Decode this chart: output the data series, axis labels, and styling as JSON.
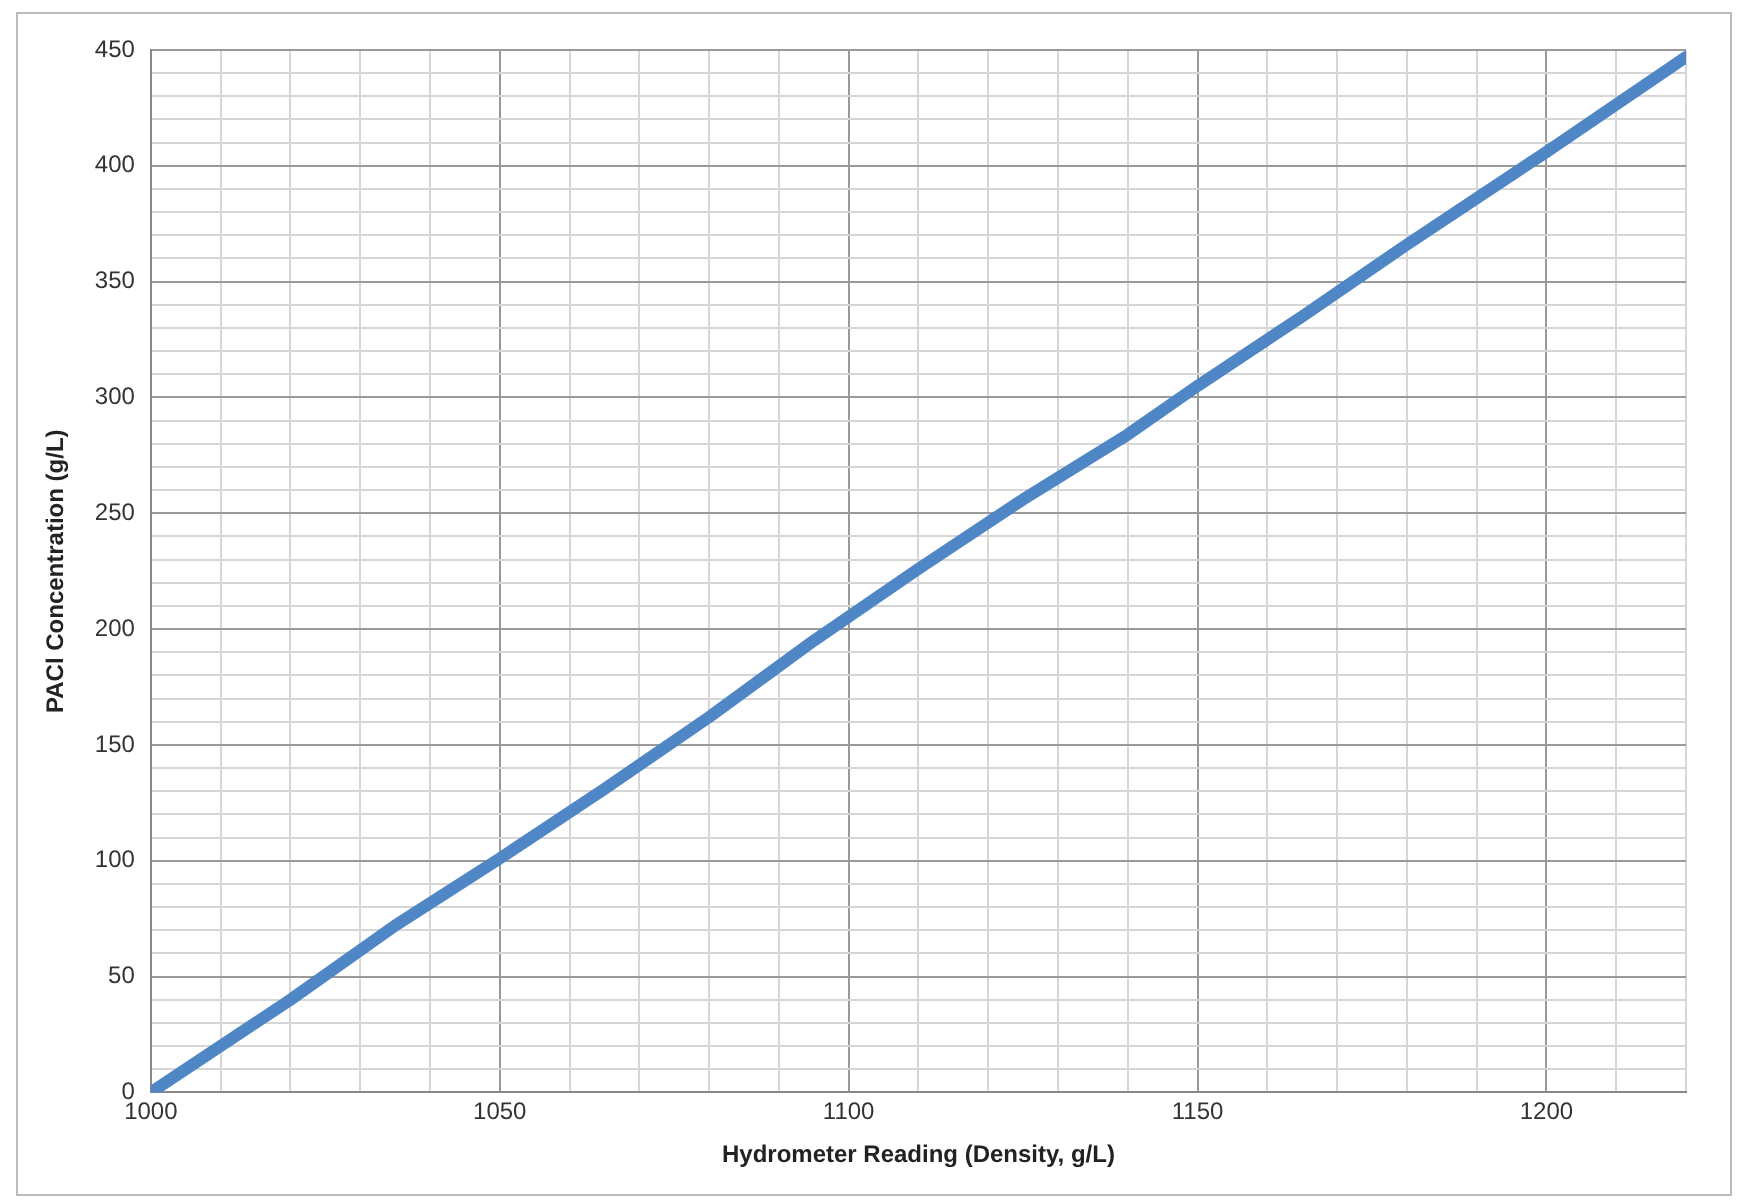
{
  "chart_data": {
    "type": "line",
    "xlabel": "Hydrometer Reading (Density, g/L)",
    "ylabel": "PACl Concentration (g/L)",
    "x": [
      1000,
      1010,
      1020,
      1035,
      1050,
      1065,
      1080,
      1095,
      1110,
      1125,
      1140,
      1150,
      1165,
      1180,
      1200,
      1220
    ],
    "series": [
      {
        "color": "#4f86c6",
        "values": [
          0,
          20,
          40,
          72,
          101,
          131,
          162,
          195,
          226,
          256,
          284,
          305,
          335,
          366,
          406,
          447
        ]
      }
    ],
    "xlim": [
      1000,
      1220
    ],
    "ylim": [
      0,
      450
    ],
    "xticks": [
      1000,
      {
        "value": 1010,
        "label": null
      },
      {
        "value": 1020,
        "label": null
      },
      {
        "value": 1030,
        "label": null
      },
      {
        "value": 1040,
        "label": null
      },
      1050,
      {
        "value": 1060,
        "label": null
      },
      {
        "value": 1070,
        "label": null
      },
      {
        "value": 1080,
        "label": null
      },
      {
        "value": 1090,
        "label": null
      },
      1100,
      {
        "value": 1110,
        "label": null
      },
      {
        "value": 1120,
        "label": null
      },
      {
        "value": 1130,
        "label": null
      },
      {
        "value": 1140,
        "label": null
      },
      1150,
      {
        "value": 1160,
        "label": null
      },
      {
        "value": 1170,
        "label": null
      },
      {
        "value": 1180,
        "label": null
      },
      {
        "value": 1190,
        "label": null
      },
      1200,
      {
        "value": 1210,
        "label": null
      },
      {
        "value": 1220,
        "label": null
      }
    ],
    "yticks": [
      0,
      {
        "value": 10,
        "label": null
      },
      {
        "value": 20,
        "label": null
      },
      {
        "value": 30,
        "label": null
      },
      {
        "value": 40,
        "label": null
      },
      50,
      {
        "value": 60,
        "label": null
      },
      {
        "value": 70,
        "label": null
      },
      {
        "value": 80,
        "label": null
      },
      {
        "value": 90,
        "label": null
      },
      100,
      {
        "value": 110,
        "label": null
      },
      {
        "value": 120,
        "label": null
      },
      {
        "value": 130,
        "label": null
      },
      {
        "value": 140,
        "label": null
      },
      150,
      {
        "value": 160,
        "label": null
      },
      {
        "value": 170,
        "label": null
      },
      {
        "value": 180,
        "label": null
      },
      {
        "value": 190,
        "label": null
      },
      200,
      {
        "value": 210,
        "label": null
      },
      {
        "value": 220,
        "label": null
      },
      {
        "value": 230,
        "label": null
      },
      {
        "value": 240,
        "label": null
      },
      250,
      {
        "value": 260,
        "label": null
      },
      {
        "value": 270,
        "label": null
      },
      {
        "value": 280,
        "label": null
      },
      {
        "value": 290,
        "label": null
      },
      300,
      {
        "value": 310,
        "label": null
      },
      {
        "value": 320,
        "label": null
      },
      {
        "value": 330,
        "label": null
      },
      {
        "value": 340,
        "label": null
      },
      350,
      {
        "value": 360,
        "label": null
      },
      {
        "value": 370,
        "label": null
      },
      {
        "value": 380,
        "label": null
      },
      {
        "value": 390,
        "label": null
      },
      400,
      {
        "value": 410,
        "label": null
      },
      {
        "value": 420,
        "label": null
      },
      {
        "value": 430,
        "label": null
      },
      {
        "value": 440,
        "label": null
      },
      450
    ],
    "grid": true,
    "legend": false,
    "marker": "none",
    "line_style": "solid"
  }
}
